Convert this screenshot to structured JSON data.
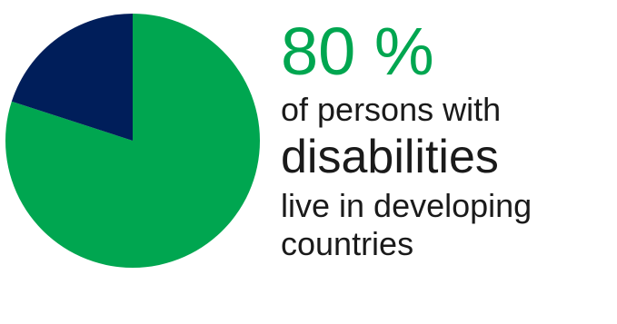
{
  "colors": {
    "primary_green": "#00a650",
    "navy": "#001e5a",
    "text_dark": "#1a1a1a"
  },
  "chart_data": {
    "type": "pie",
    "title": "",
    "slices": [
      {
        "value": 80,
        "color": "#00a650"
      },
      {
        "value": 20,
        "color": "#001e5a"
      }
    ]
  },
  "statement": {
    "headline": "80 %",
    "line1": "of persons with",
    "line2": "disabilities",
    "line3": "live in developing",
    "line4": "countries"
  }
}
